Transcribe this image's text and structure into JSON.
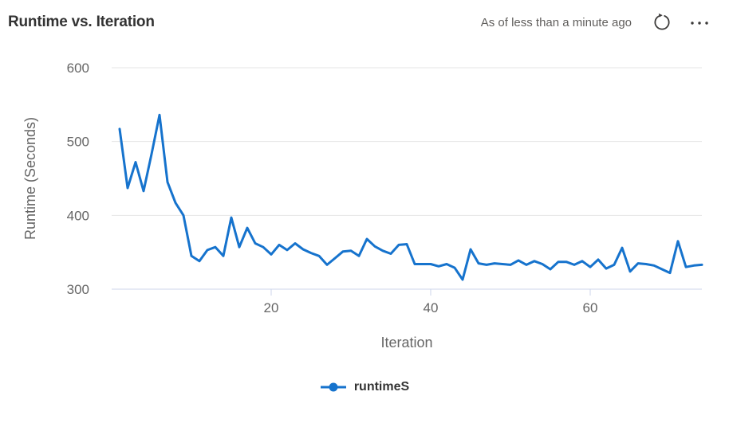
{
  "header": {
    "title": "Runtime vs. Iteration",
    "freshness": "As of less than a minute ago"
  },
  "legend": {
    "label": "runtimeS"
  },
  "colors": {
    "line": "#1673cd",
    "grid": "#e6e6e6",
    "axis": "#ccd6eb",
    "tick_text": "#666666",
    "axis_title_text": "#666666",
    "title_text": "#333333",
    "muted_text": "#605e5c",
    "icon": "#3b3a39"
  },
  "chart_data": {
    "type": "line",
    "title": "Runtime vs. Iteration",
    "xlabel": "Iteration",
    "ylabel": "Runtime (Seconds)",
    "xlim": [
      0,
      74
    ],
    "ylim": [
      300,
      600
    ],
    "x_ticks": [
      20,
      40,
      60
    ],
    "y_ticks": [
      300,
      400,
      500,
      600
    ],
    "grid": "horizontal-only",
    "legend_position": "bottom-center",
    "series": [
      {
        "name": "runtimeS",
        "color": "#1673cd",
        "x": [
          1,
          2,
          3,
          4,
          5,
          6,
          7,
          8,
          9,
          10,
          11,
          12,
          13,
          14,
          15,
          16,
          17,
          18,
          19,
          20,
          21,
          22,
          23,
          24,
          25,
          26,
          27,
          28,
          29,
          30,
          31,
          32,
          33,
          34,
          35,
          36,
          37,
          38,
          39,
          40,
          41,
          42,
          43,
          44,
          45,
          46,
          47,
          48,
          49,
          50,
          51,
          52,
          53,
          54,
          55,
          56,
          57,
          58,
          59,
          60,
          61,
          62,
          63,
          64,
          65,
          66,
          67,
          68,
          69,
          70,
          71,
          72,
          73,
          74
        ],
        "values": [
          517,
          437,
          472,
          433,
          483,
          536,
          445,
          417,
          400,
          345,
          338,
          353,
          357,
          345,
          397,
          357,
          383,
          362,
          357,
          347,
          360,
          353,
          362,
          354,
          349,
          345,
          333,
          342,
          351,
          352,
          345,
          368,
          358,
          352,
          348,
          360,
          361,
          334,
          334,
          334,
          331,
          334,
          329,
          313,
          354,
          335,
          333,
          335,
          334,
          333,
          339,
          333,
          338,
          334,
          327,
          337,
          337,
          333,
          338,
          330,
          340,
          328,
          333,
          356,
          324,
          335,
          334,
          332,
          327,
          322,
          365,
          330,
          332,
          333
        ]
      }
    ]
  }
}
